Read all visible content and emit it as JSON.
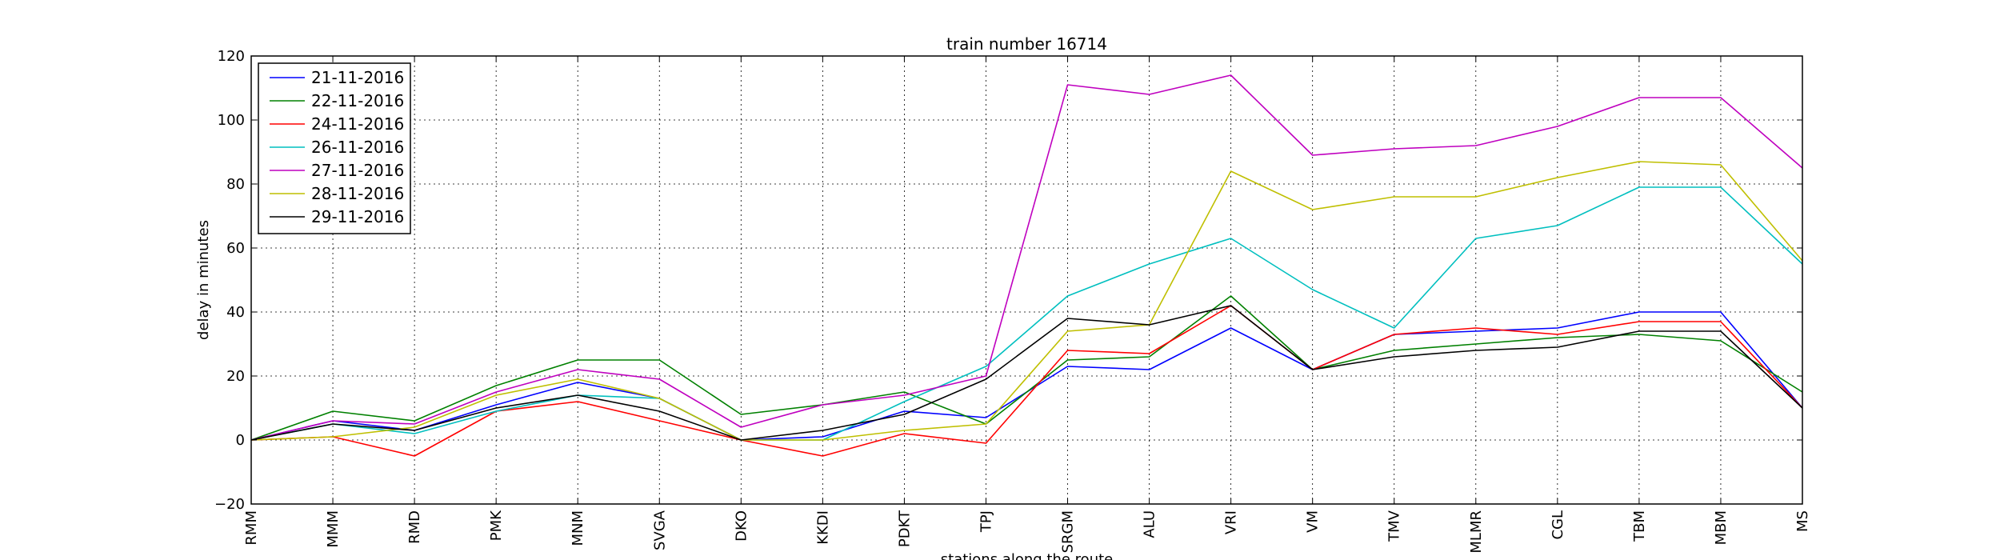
{
  "chart_data": {
    "type": "line",
    "title": "train number 16714",
    "xlabel": "stations along the route",
    "ylabel": "delay in minutes",
    "ylim": [
      -20,
      120
    ],
    "yticks": [
      -20,
      0,
      20,
      40,
      60,
      80,
      100,
      120
    ],
    "grid": true,
    "legend_position": "top-left",
    "categories": [
      "RMM",
      "MMM",
      "RMD",
      "PMK",
      "MNM",
      "SVGA",
      "DKO",
      "KKDI",
      "PDKT",
      "TPJ",
      "SRGM",
      "ALU",
      "VRI",
      "VM",
      "TMV",
      "MLMR",
      "CGL",
      "TBM",
      "MBM",
      "MS"
    ],
    "series": [
      {
        "name": "21-11-2016",
        "color": "#0000ff",
        "values": [
          0,
          6,
          3,
          11,
          18,
          13,
          0,
          1,
          9,
          7,
          23,
          22,
          35,
          22,
          33,
          34,
          35,
          40,
          40,
          10
        ]
      },
      {
        "name": "22-11-2016",
        "color": "#008000",
        "values": [
          0,
          9,
          6,
          17,
          25,
          25,
          8,
          11,
          15,
          5,
          25,
          26,
          45,
          22,
          28,
          30,
          32,
          33,
          31,
          15
        ]
      },
      {
        "name": "24-11-2016",
        "color": "#ff0000",
        "values": [
          0,
          1,
          -5,
          9,
          12,
          6,
          0,
          -5,
          2,
          -1,
          28,
          27,
          42,
          22,
          33,
          35,
          33,
          37,
          37,
          10
        ]
      },
      {
        "name": "26-11-2016",
        "color": "#00bfbf",
        "values": [
          0,
          5,
          2,
          9,
          14,
          13,
          0,
          0,
          12,
          23,
          45,
          55,
          63,
          47,
          35,
          63,
          67,
          79,
          79,
          55
        ]
      },
      {
        "name": "27-11-2016",
        "color": "#bf00bf",
        "values": [
          0,
          6,
          5,
          15,
          22,
          19,
          4,
          11,
          14,
          20,
          111,
          108,
          114,
          89,
          91,
          92,
          98,
          107,
          107,
          85
        ]
      },
      {
        "name": "28-11-2016",
        "color": "#bfbf00",
        "values": [
          0,
          1,
          4,
          14,
          19,
          13,
          0,
          0,
          3,
          5,
          34,
          36,
          84,
          72,
          76,
          76,
          82,
          87,
          86,
          56
        ]
      },
      {
        "name": "29-11-2016",
        "color": "#000000",
        "values": [
          0,
          5,
          3,
          10,
          14,
          9,
          0,
          3,
          8,
          19,
          38,
          36,
          42,
          22,
          26,
          28,
          29,
          34,
          34,
          10
        ]
      }
    ]
  }
}
